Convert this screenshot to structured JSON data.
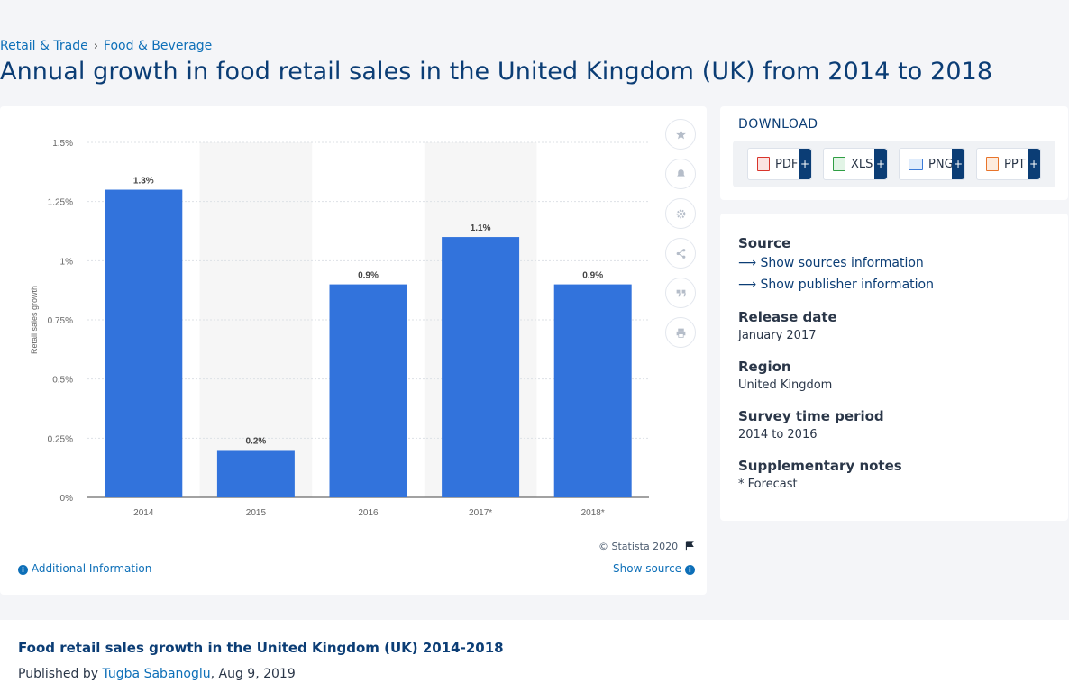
{
  "breadcrumb": {
    "items": [
      "Retail & Trade",
      "Food & Beverage"
    ],
    "separator": "›"
  },
  "page_title": "Annual growth in food retail sales in the United Kingdom (UK) from 2014 to 2018",
  "chart_data": {
    "type": "bar",
    "categories": [
      "2014",
      "2015",
      "2016",
      "2017*",
      "2018*"
    ],
    "values": [
      1.3,
      0.2,
      0.9,
      1.1,
      0.9
    ],
    "value_labels": [
      "1.3%",
      "0.2%",
      "0.9%",
      "1.1%",
      "0.9%"
    ],
    "ylabel": "Retail sales growth",
    "xlabel": "",
    "ylim": [
      0,
      1.5
    ],
    "yticks": [
      0,
      0.25,
      0.5,
      0.75,
      1,
      1.25,
      1.5
    ],
    "ytick_labels": [
      "0%",
      "0.25%",
      "0.5%",
      "0.75%",
      "1%",
      "1.25%",
      "1.5%"
    ],
    "bar_color": "#3273dc",
    "grid": true,
    "alternate_band_color": "#f6f6f6"
  },
  "chart_footer": {
    "copyright": "© Statista 2020",
    "additional_info": "Additional Information",
    "show_source": "Show source"
  },
  "tools": [
    "star-icon",
    "bell-icon",
    "gear-icon",
    "share-icon",
    "quote-icon",
    "print-icon"
  ],
  "download": {
    "title": "DOWNLOAD",
    "buttons": [
      {
        "label": "PDF",
        "color": "#d9342b"
      },
      {
        "label": "XLS",
        "color": "#2f9e44"
      },
      {
        "label": "PNG",
        "color": "#3b7bd8"
      },
      {
        "label": "PPT",
        "color": "#e8742a"
      }
    ],
    "plus": "+"
  },
  "meta": {
    "source_heading": "Source",
    "show_sources": "Show sources information",
    "show_publisher": "Show publisher information",
    "release_heading": "Release date",
    "release_value": "January 2017",
    "region_heading": "Region",
    "region_value": "United Kingdom",
    "survey_heading": "Survey time period",
    "survey_value": "2014 to 2016",
    "notes_heading": "Supplementary notes",
    "notes_value": "* Forecast"
  },
  "bottom": {
    "title": "Food retail sales growth in the United Kingdom (UK) 2014-2018",
    "published_prefix": "Published by",
    "author": "Tugba Sabanoglu",
    "date": ", Aug 9, 2019"
  }
}
